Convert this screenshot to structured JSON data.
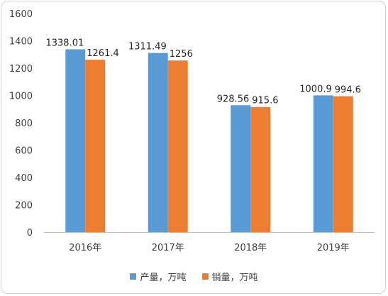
{
  "chart_data": {
    "type": "bar",
    "categories": [
      "2016年",
      "2017年",
      "2018年",
      "2019年"
    ],
    "series": [
      {
        "name": "产量，万吨",
        "values": [
          1338.01,
          1311.49,
          928.56,
          1000.9
        ],
        "labels": [
          "1338.01",
          "1311.49",
          "928.56",
          "1000.9"
        ],
        "color": "#5b9bd5"
      },
      {
        "name": "销量，万吨",
        "values": [
          1261.4,
          1256,
          915.6,
          994.6
        ],
        "labels": [
          "1261.4",
          "1256",
          "915.6",
          "994.6"
        ],
        "color": "#ed7d31"
      }
    ],
    "yticks": [
      "0",
      "200",
      "400",
      "600",
      "800",
      "1000",
      "1200",
      "1400",
      "1600"
    ],
    "ylim": [
      0,
      1600
    ],
    "grid": false,
    "legend": "bottom"
  }
}
